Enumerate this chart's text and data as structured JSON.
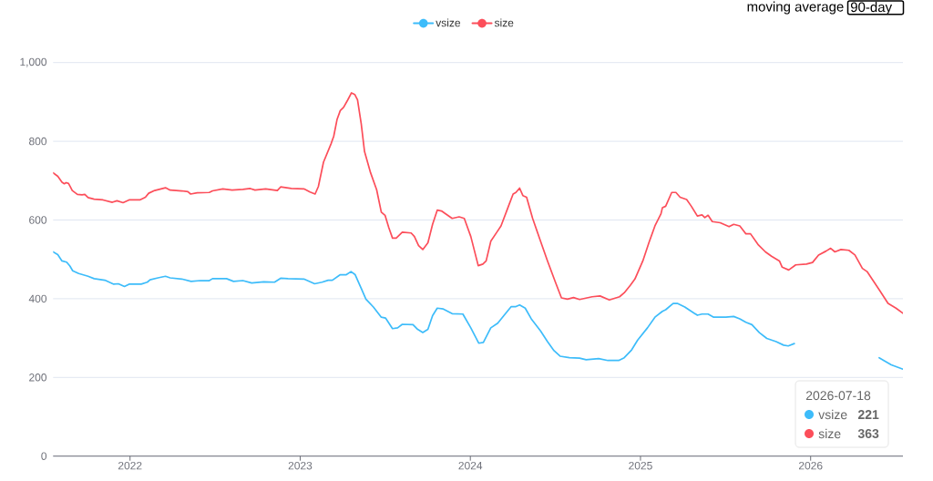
{
  "chart_data": {
    "type": "line",
    "annotations": [
      "moving average",
      "90-day",
      "2026-07-18",
      "221",
      "363"
    ],
    "xlim": [
      "2021-07-20",
      "2026-07-18"
    ],
    "xticks": [
      "2022",
      "2023",
      "2024",
      "2025",
      "2026"
    ],
    "ylim": [
      0,
      1000
    ],
    "yticks": [
      0,
      200,
      400,
      600,
      800,
      {
        "value": 1000,
        "label": "1,000"
      }
    ],
    "grid": "y",
    "legend": "top",
    "line_style": "solid",
    "series": [
      {
        "name": "vsize",
        "color": "#3dbcfa",
        "x": [
          "2021-07-20",
          "2021-07-30",
          "2021-08-08",
          "2021-08-18",
          "2021-08-25",
          "2021-08-31",
          "2021-09-13",
          "2021-10-03",
          "2021-10-16",
          "2021-11-08",
          "2021-11-27",
          "2021-12-07",
          "2021-12-20",
          "2021-12-30",
          "2022-01-25",
          "2022-02-07",
          "2022-02-13",
          "2022-03-02",
          "2022-03-18",
          "2022-03-28",
          "2022-04-22",
          "2022-05-12",
          "2022-06-01",
          "2022-06-20",
          "2022-06-27",
          "2022-07-27",
          "2022-08-11",
          "2022-08-31",
          "2022-09-19",
          "2022-10-15",
          "2022-11-07",
          "2022-11-20",
          "2022-12-06",
          "2023-01-09",
          "2023-02-01",
          "2023-02-17",
          "2023-03-02",
          "2023-03-11",
          "2023-03-28",
          "2023-04-10",
          "2023-04-20",
          "2023-04-29",
          "2023-05-12",
          "2023-05-22",
          "2023-06-07",
          "2023-06-24",
          "2023-07-03",
          "2023-07-18",
          "2023-07-29",
          "2023-08-08",
          "2023-08-31",
          "2023-09-10",
          "2023-09-21",
          "2023-10-02",
          "2023-10-12",
          "2023-10-22",
          "2023-11-04",
          "2023-11-23",
          "2023-12-16",
          "2024-01-02",
          "2024-01-19",
          "2024-01-29",
          "2024-02-14",
          "2024-02-29",
          "2024-03-13",
          "2024-03-29",
          "2024-04-08",
          "2024-04-16",
          "2024-04-28",
          "2024-05-11",
          "2024-05-31",
          "2024-06-15",
          "2024-06-29",
          "2024-07-12",
          "2024-08-01",
          "2024-08-23",
          "2024-09-06",
          "2024-10-03",
          "2024-10-23",
          "2024-11-15",
          "2024-11-27",
          "2024-12-13",
          "2024-12-26",
          "2025-01-16",
          "2025-02-01",
          "2025-02-17",
          "2025-02-24",
          "2025-03-12",
          "2025-03-21",
          "2025-04-06",
          "2025-04-20",
          "2025-05-03",
          "2025-05-13",
          "2025-05-26",
          "2025-06-07",
          "2025-07-03",
          "2025-07-20",
          "2025-08-02",
          "2025-08-15",
          "2025-08-28",
          "2025-09-13",
          "2025-09-29",
          "2025-10-19",
          "2025-11-04",
          "2025-11-14",
          "2025-11-27",
          "2026-02-15",
          "2026-05-28",
          "2026-06-07",
          "2026-06-23",
          "2026-07-18"
        ],
        "values": [
          519,
          512,
          496,
          493,
          483,
          471,
          464,
          457,
          451,
          447,
          437,
          438,
          431,
          437,
          437,
          442,
          448,
          453,
          457,
          453,
          450,
          444,
          446,
          446,
          451,
          451,
          444,
          446,
          440,
          443,
          442,
          452,
          451,
          450,
          438,
          442,
          447,
          447,
          461,
          461,
          469,
          461,
          426,
          399,
          379,
          353,
          351,
          324,
          326,
          335,
          334,
          322,
          314,
          322,
          357,
          376,
          374,
          362,
          361,
          326,
          287,
          289,
          326,
          338,
          357,
          380,
          380,
          384,
          376,
          349,
          318,
          291,
          268,
          254,
          250,
          249,
          245,
          248,
          243,
          243,
          250,
          270,
          295,
          326,
          353,
          368,
          372,
          388,
          388,
          379,
          368,
          358,
          361,
          361,
          353,
          353,
          355,
          349,
          340,
          334,
          314,
          299,
          291,
          282,
          280,
          286,
          null,
          250,
          243,
          232,
          221
        ]
      },
      {
        "name": "size",
        "color": "#fc4e5a",
        "x": [
          "2021-07-20",
          "2021-07-30",
          "2021-08-08",
          "2021-08-13",
          "2021-08-17",
          "2021-08-22",
          "2021-08-26",
          "2021-08-30",
          "2021-09-10",
          "2021-09-20",
          "2021-09-26",
          "2021-10-03",
          "2021-10-16",
          "2021-11-04",
          "2021-11-24",
          "2021-12-04",
          "2021-12-17",
          "2021-12-30",
          "2022-01-22",
          "2022-02-03",
          "2022-02-10",
          "2022-02-23",
          "2022-03-18",
          "2022-03-28",
          "2022-04-22",
          "2022-05-05",
          "2022-05-11",
          "2022-05-25",
          "2022-06-20",
          "2022-06-27",
          "2022-07-19",
          "2022-08-08",
          "2022-08-31",
          "2022-09-16",
          "2022-09-26",
          "2022-10-19",
          "2022-11-13",
          "2022-11-20",
          "2022-12-13",
          "2023-01-09",
          "2023-01-22",
          "2023-02-02",
          "2023-02-09",
          "2023-02-20",
          "2023-03-08",
          "2023-03-14",
          "2023-03-21",
          "2023-03-28",
          "2023-04-04",
          "2023-04-13",
          "2023-04-21",
          "2023-04-28",
          "2023-05-04",
          "2023-05-12",
          "2023-05-19",
          "2023-06-01",
          "2023-06-14",
          "2023-06-24",
          "2023-07-02",
          "2023-07-10",
          "2023-07-18",
          "2023-07-26",
          "2023-08-08",
          "2023-08-27",
          "2023-09-03",
          "2023-09-12",
          "2023-09-21",
          "2023-10-02",
          "2023-10-12",
          "2023-10-22",
          "2023-10-31",
          "2023-11-23",
          "2023-12-08",
          "2023-12-19",
          "2024-01-02",
          "2024-01-18",
          "2024-01-28",
          "2024-02-04",
          "2024-02-14",
          "2024-02-27",
          "2024-03-07",
          "2024-03-23",
          "2024-04-02",
          "2024-04-08",
          "2024-04-16",
          "2024-04-23",
          "2024-05-01",
          "2024-05-14",
          "2024-05-31",
          "2024-06-15",
          "2024-07-02",
          "2024-07-15",
          "2024-07-28",
          "2024-08-10",
          "2024-08-23",
          "2024-09-19",
          "2024-10-06",
          "2024-10-26",
          "2024-11-17",
          "2024-11-27",
          "2024-12-10",
          "2024-12-20",
          "2025-01-06",
          "2025-01-19",
          "2025-02-01",
          "2025-02-14",
          "2025-02-17",
          "2025-02-24",
          "2025-03-09",
          "2025-03-18",
          "2025-03-27",
          "2025-04-10",
          "2025-04-20",
          "2025-05-03",
          "2025-05-13",
          "2025-05-19",
          "2025-05-26",
          "2025-06-04",
          "2025-06-21",
          "2025-07-10",
          "2025-07-20",
          "2025-08-02",
          "2025-08-15",
          "2025-08-25",
          "2025-09-10",
          "2025-09-26",
          "2025-10-09",
          "2025-10-26",
          "2025-11-01",
          "2025-11-15",
          "2025-11-30",
          "2025-12-23",
          "2026-01-05",
          "2026-01-18",
          "2026-02-03",
          "2026-02-13",
          "2026-02-22",
          "2026-03-07",
          "2026-03-24",
          "2026-04-06",
          "2026-04-22",
          "2026-05-02",
          "2026-05-15",
          "2026-05-28",
          "2026-06-16",
          "2026-07-03",
          "2026-07-18"
        ],
        "values": [
          720,
          711,
          696,
          692,
          695,
          693,
          684,
          675,
          665,
          664,
          665,
          657,
          653,
          651,
          645,
          649,
          644,
          651,
          651,
          658,
          668,
          675,
          682,
          676,
          674,
          672,
          666,
          669,
          670,
          674,
          679,
          676,
          678,
          680,
          676,
          679,
          675,
          684,
          680,
          679,
          671,
          666,
          685,
          747,
          793,
          813,
          855,
          878,
          886,
          905,
          923,
          919,
          905,
          844,
          774,
          720,
          677,
          620,
          612,
          581,
          554,
          554,
          569,
          567,
          558,
          535,
          525,
          542,
          589,
          625,
          623,
          604,
          608,
          604,
          558,
          484,
          488,
          496,
          546,
          569,
          585,
          635,
          666,
          670,
          681,
          662,
          658,
          604,
          546,
          496,
          442,
          402,
          399,
          403,
          398,
          405,
          407,
          397,
          405,
          415,
          434,
          450,
          496,
          542,
          585,
          616,
          631,
          635,
          670,
          670,
          658,
          652,
          635,
          610,
          613,
          606,
          612,
          596,
          593,
          583,
          589,
          585,
          565,
          565,
          538,
          519,
          508,
          496,
          480,
          473,
          486,
          488,
          492,
          511,
          521,
          528,
          519,
          525,
          523,
          511,
          477,
          469,
          446,
          423,
          388,
          376,
          363
        ]
      }
    ]
  }
}
